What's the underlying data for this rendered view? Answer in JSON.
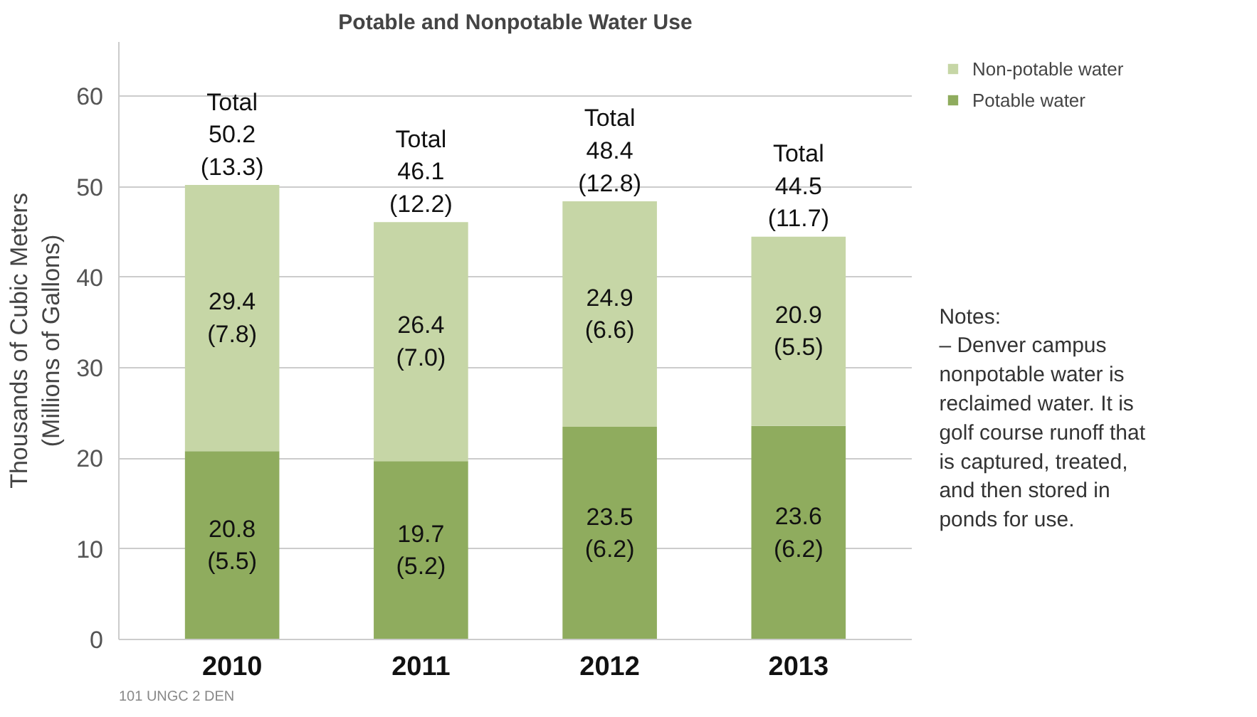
{
  "chart_data": {
    "type": "bar",
    "title": "Potable and Nonpotable Water Use",
    "ylabel": "Thousands of Cubic Meters\n(Millions of Gallons)",
    "categories": [
      "2010",
      "2011",
      "2012",
      "2013"
    ],
    "stacked": true,
    "series": [
      {
        "name": "Potable water",
        "color": "#8fac5e",
        "values": [
          20.8,
          19.7,
          23.5,
          23.6
        ],
        "value_labels": [
          "20.8\n(5.5)",
          "19.7\n(5.2)",
          "23.5\n(6.2)",
          "23.6\n(6.2)"
        ]
      },
      {
        "name": "Non-potable water",
        "color": "#c6d6a6",
        "values": [
          29.4,
          26.4,
          24.9,
          20.9
        ],
        "value_labels": [
          "29.4\n(7.8)",
          "26.4\n(7.0)",
          "24.9\n(6.6)",
          "20.9\n(5.5)"
        ]
      }
    ],
    "totals": [
      "Total\n50.2\n(13.3)",
      "Total\n46.1\n(12.2)",
      "Total\n48.4\n(12.8)",
      "Total\n44.5\n(11.7)"
    ],
    "ylim": [
      0,
      66
    ],
    "yticks": [
      0,
      10,
      20,
      30,
      40,
      50,
      60
    ],
    "grid": "y",
    "legend": "top right",
    "annotations": [
      "Notes:\n– Denver campus\n   nonpotable water is\n   reclaimed water. It is\n   golf course runoff that\n   is captured, treated,\n   and then stored in\n   ponds for use.",
      "101  UNGC  2  DEN"
    ]
  }
}
